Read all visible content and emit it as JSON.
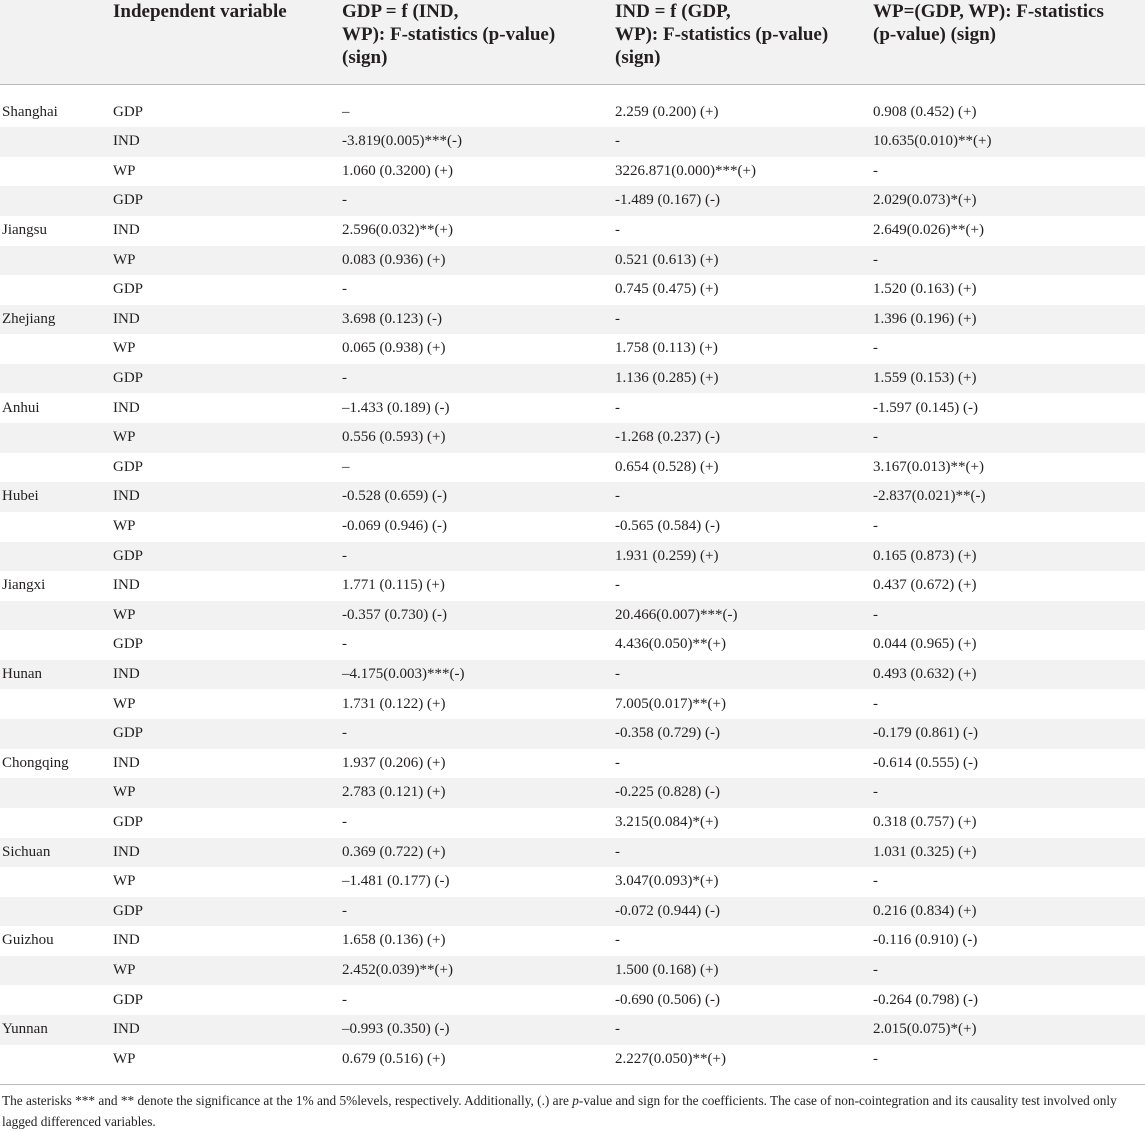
{
  "header": {
    "col0": "",
    "col1": [
      "Independent variable"
    ],
    "col2": [
      "GDP = f (IND,",
      "WP): F-statistics (p-value)",
      "(sign)"
    ],
    "col3": [
      "IND = f (GDP,",
      "WP): F-statistics (p-value)",
      "(sign)"
    ],
    "col4": [
      "WP=(GDP, WP): F-statistics",
      "(p-value) (sign)"
    ]
  },
  "rows": [
    {
      "region": "Shanghai",
      "var": "GDP",
      "gdp": "–",
      "ind": "2.259 (0.200) (+)",
      "wp": "0.908 (0.452) (+)"
    },
    {
      "region": "",
      "var": "IND",
      "gdp": "-3.819(0.005)***(-)",
      "ind": "-",
      "wp": "10.635(0.010)**(+)"
    },
    {
      "region": "",
      "var": "WP",
      "gdp": "1.060 (0.3200) (+)",
      "ind": "3226.871(0.000)***(+)",
      "wp": "-"
    },
    {
      "region": "",
      "var": "GDP",
      "gdp": "-",
      "ind": "-1.489 (0.167) (-)",
      "wp": "2.029(0.073)*(+)"
    },
    {
      "region": "Jiangsu",
      "var": "IND",
      "gdp": "2.596(0.032)**(+)",
      "ind": "-",
      "wp": "2.649(0.026)**(+)"
    },
    {
      "region": "",
      "var": "WP",
      "gdp": "0.083 (0.936) (+)",
      "ind": "0.521 (0.613) (+)",
      "wp": "-"
    },
    {
      "region": "",
      "var": "GDP",
      "gdp": "-",
      "ind": "0.745 (0.475) (+)",
      "wp": "1.520 (0.163) (+)"
    },
    {
      "region": "Zhejiang",
      "var": "IND",
      "gdp": "3.698 (0.123) (-)",
      "ind": "-",
      "wp": "1.396 (0.196) (+)"
    },
    {
      "region": "",
      "var": "WP",
      "gdp": "0.065 (0.938) (+)",
      "ind": "1.758 (0.113) (+)",
      "wp": "-"
    },
    {
      "region": "",
      "var": "GDP",
      "gdp": "-",
      "ind": "1.136 (0.285) (+)",
      "wp": "1.559 (0.153) (+)"
    },
    {
      "region": "Anhui",
      "var": "IND",
      "gdp": "–1.433 (0.189) (-)",
      "ind": "-",
      "wp": "-1.597 (0.145) (-)"
    },
    {
      "region": "",
      "var": "WP",
      "gdp": "0.556 (0.593) (+)",
      "ind": "-1.268 (0.237) (-)",
      "wp": "-"
    },
    {
      "region": "",
      "var": "GDP",
      "gdp": "–",
      "ind": "0.654 (0.528) (+)",
      "wp": "3.167(0.013)**(+)"
    },
    {
      "region": "Hubei",
      "var": "IND",
      "gdp": "-0.528 (0.659) (-)",
      "ind": "-",
      "wp": "-2.837(0.021)**(-)"
    },
    {
      "region": "",
      "var": "WP",
      "gdp": "-0.069 (0.946) (-)",
      "ind": "-0.565 (0.584) (-)",
      "wp": "-"
    },
    {
      "region": "",
      "var": "GDP",
      "gdp": "-",
      "ind": "1.931 (0.259) (+)",
      "wp": "0.165 (0.873) (+)"
    },
    {
      "region": "Jiangxi",
      "var": "IND",
      "gdp": "1.771 (0.115) (+)",
      "ind": "-",
      "wp": "0.437 (0.672) (+)"
    },
    {
      "region": "",
      "var": "WP",
      "gdp": "-0.357 (0.730) (-)",
      "ind": "20.466(0.007)***(-)",
      "wp": "-"
    },
    {
      "region": "",
      "var": "GDP",
      "gdp": "-",
      "ind": "4.436(0.050)**(+)",
      "wp": "0.044 (0.965) (+)"
    },
    {
      "region": "Hunan",
      "var": "IND",
      "gdp": "–4.175(0.003)***(-)",
      "ind": "-",
      "wp": "0.493 (0.632) (+)"
    },
    {
      "region": "",
      "var": "WP",
      "gdp": "1.731 (0.122) (+)",
      "ind": "7.005(0.017)**(+)",
      "wp": "-"
    },
    {
      "region": "",
      "var": "GDP",
      "gdp": "-",
      "ind": "-0.358 (0.729) (-)",
      "wp": "-0.179 (0.861) (-)"
    },
    {
      "region": "Chongqing",
      "var": "IND",
      "gdp": "1.937 (0.206) (+)",
      "ind": "-",
      "wp": "-0.614 (0.555) (-)"
    },
    {
      "region": "",
      "var": "WP",
      "gdp": "2.783 (0.121) (+)",
      "ind": "-0.225 (0.828) (-)",
      "wp": "-"
    },
    {
      "region": "",
      "var": "GDP",
      "gdp": "-",
      "ind": "3.215(0.084)*(+)",
      "wp": "0.318 (0.757) (+)"
    },
    {
      "region": "Sichuan",
      "var": "IND",
      "gdp": "0.369 (0.722) (+)",
      "ind": "-",
      "wp": "1.031 (0.325) (+)"
    },
    {
      "region": "",
      "var": "WP",
      "gdp": "–1.481 (0.177) (-)",
      "ind": "3.047(0.093)*(+)",
      "wp": "-"
    },
    {
      "region": "",
      "var": "GDP",
      "gdp": "-",
      "ind": "-0.072 (0.944) (-)",
      "wp": "0.216 (0.834) (+)"
    },
    {
      "region": "Guizhou",
      "var": "IND",
      "gdp": "1.658 (0.136) (+)",
      "ind": "-",
      "wp": "-0.116 (0.910) (-)"
    },
    {
      "region": "",
      "var": "WP",
      "gdp": "2.452(0.039)**(+)",
      "ind": "1.500 (0.168) (+)",
      "wp": "-"
    },
    {
      "region": "",
      "var": "GDP",
      "gdp": "-",
      "ind": "-0.690 (0.506) (-)",
      "wp": "-0.264 (0.798) (-)"
    },
    {
      "region": "Yunnan",
      "var": "IND",
      "gdp": "–0.993 (0.350) (-)",
      "ind": "-",
      "wp": "2.015(0.075)*(+)"
    },
    {
      "region": "",
      "var": "WP",
      "gdp": "0.679 (0.516) (+)",
      "ind": "2.227(0.050)**(+)",
      "wp": "-"
    }
  ],
  "footnote": {
    "part1": "The asterisks *** and ** denote the significance at the 1% and 5%levels, respectively. Additionally, (.) are ",
    "italic": "p",
    "part2": "-value and sign for the coefficients. The case of non-cointegration and its causality test involved only lagged differenced variables."
  }
}
